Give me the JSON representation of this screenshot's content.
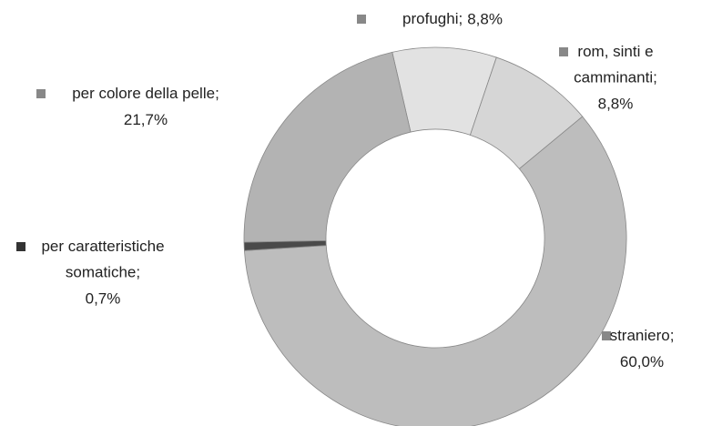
{
  "chart_data": {
    "type": "donut",
    "categories": [
      "profughi;",
      "rom, sinti e camminanti;",
      "straniero;",
      "per caratteristiche somatiche;",
      "per colore della pelle;"
    ],
    "values": [
      8.8,
      8.8,
      60.0,
      0.7,
      21.7
    ],
    "value_labels": [
      "8,8%",
      "8,8%",
      "60,0%",
      "0,7%",
      "21,7%"
    ],
    "colors": [
      "#e2e2e2",
      "#d6d6d6",
      "#bdbdbd",
      "#4a4a4a",
      "#b3b3b3"
    ]
  }
}
